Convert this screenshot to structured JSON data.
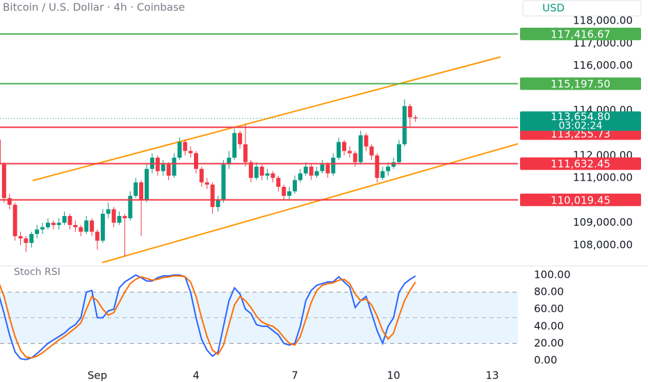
{
  "header": {
    "title": "Bitcoin / U.S. Dollar · 4h · Coinbase",
    "currency": "USD"
  },
  "chart_data": [
    {
      "type": "candlestick",
      "x": [
        0,
        1,
        2,
        3,
        4,
        5,
        6,
        7,
        8,
        9,
        10,
        11,
        12,
        13,
        14,
        15,
        16,
        17,
        18,
        19,
        20,
        21,
        22,
        23,
        24,
        25,
        26,
        27,
        28,
        29,
        30,
        31,
        32,
        33,
        34,
        35,
        36,
        37,
        38,
        39,
        40,
        41,
        42,
        43,
        44,
        45,
        46,
        47,
        48,
        49,
        50,
        51,
        52,
        53,
        54,
        55,
        56,
        57,
        58,
        59,
        60,
        61,
        62,
        63,
        64,
        65,
        66,
        67,
        68,
        69,
        70,
        71,
        72,
        73,
        74,
        75,
        76
      ],
      "open": [
        112700,
        111600,
        110100,
        109800,
        108400,
        108300,
        108100,
        108500,
        108700,
        108800,
        109000,
        108900,
        109000,
        109300,
        108900,
        108800,
        108600,
        109100,
        108600,
        108200,
        109400,
        109600,
        109000,
        109300,
        109200,
        110200,
        110800,
        110000,
        111400,
        111900,
        111300,
        111600,
        111100,
        111900,
        112600,
        112200,
        112100,
        111400,
        110800,
        110700,
        109700,
        110000,
        111600,
        111900,
        113000,
        112500,
        111700,
        111000,
        111500,
        111100,
        111200,
        111000,
        110600,
        110200,
        110400,
        110900,
        111200,
        111500,
        111100,
        111300,
        111600,
        111200,
        111900,
        112600,
        112200,
        112100,
        111700,
        112900,
        112400,
        112000,
        111000,
        111300,
        111500,
        111700,
        112500,
        114200,
        113700
      ],
      "high": [
        112900,
        111700,
        110300,
        109900,
        108600,
        108400,
        108600,
        108900,
        109000,
        109200,
        109100,
        109200,
        109500,
        109400,
        109100,
        108900,
        109300,
        109200,
        108700,
        109600,
        109900,
        109700,
        109500,
        109400,
        110400,
        111000,
        110900,
        111600,
        112100,
        112000,
        111800,
        111700,
        112100,
        112800,
        112700,
        112400,
        112200,
        111500,
        111000,
        110800,
        110200,
        111800,
        112200,
        113200,
        113100,
        113400,
        111800,
        111700,
        111600,
        111400,
        111300,
        111100,
        110700,
        110600,
        111100,
        111400,
        111700,
        111600,
        111500,
        111800,
        111700,
        112100,
        112800,
        112700,
        112400,
        112200,
        113100,
        113000,
        112500,
        112100,
        111500,
        111700,
        111900,
        112700,
        114500,
        114300,
        113800
      ],
      "low": [
        111400,
        109900,
        109600,
        108200,
        108000,
        107700,
        107900,
        108300,
        108500,
        108700,
        108700,
        108700,
        108900,
        108700,
        108600,
        108400,
        108500,
        108400,
        107800,
        108100,
        109200,
        108800,
        108900,
        107500,
        109100,
        110100,
        108400,
        109900,
        111200,
        111100,
        111100,
        110900,
        111000,
        111800,
        112000,
        111900,
        111200,
        110600,
        110500,
        109400,
        109500,
        109900,
        111400,
        111800,
        112300,
        111500,
        110800,
        110900,
        110900,
        110900,
        110800,
        110400,
        110000,
        110000,
        110300,
        110800,
        111100,
        110900,
        111000,
        111200,
        111000,
        111100,
        111800,
        112000,
        111900,
        111500,
        111600,
        112200,
        111800,
        110800,
        110900,
        111100,
        111400,
        111600,
        112400,
        113300,
        113500
      ],
      "close": [
        111600,
        110100,
        109800,
        108400,
        108300,
        108100,
        108500,
        108700,
        108800,
        109000,
        108900,
        109000,
        109300,
        108900,
        108800,
        108600,
        109100,
        108600,
        108200,
        109400,
        109600,
        109000,
        109300,
        109200,
        110200,
        110800,
        110000,
        111400,
        111900,
        111300,
        111600,
        111100,
        111900,
        112600,
        112200,
        112100,
        111400,
        110800,
        110700,
        109700,
        110000,
        111600,
        111900,
        113000,
        112500,
        111700,
        111000,
        111500,
        111100,
        111200,
        111000,
        110600,
        110200,
        110400,
        110900,
        111200,
        111500,
        111100,
        111300,
        111600,
        111200,
        111900,
        112600,
        112200,
        112100,
        111700,
        112900,
        112400,
        112000,
        111000,
        111300,
        111500,
        111700,
        112500,
        114200,
        113700,
        113654.8
      ],
      "up_color": "#089981",
      "down_color": "#f23645",
      "xlim": [
        0.26,
        94.68
      ],
      "xticks": [
        {
          "value": 18,
          "label": "Sep"
        },
        {
          "value": 36,
          "label": "4"
        },
        {
          "value": 54,
          "label": "7"
        },
        {
          "value": 72,
          "label": "10"
        },
        {
          "value": 90,
          "label": "13"
        }
      ],
      "ylim": [
        107164,
        118929
      ],
      "yticks": [
        {
          "value": 118000,
          "label": "118,000.00"
        },
        {
          "value": 117000,
          "label": "117,000.00"
        },
        {
          "value": 116000,
          "label": "116,000.00"
        },
        {
          "value": 114000,
          "label": "114,000.00"
        },
        {
          "value": 112000,
          "label": "112,000.00"
        },
        {
          "value": 111000,
          "label": "111,000.00"
        },
        {
          "value": 109000,
          "label": "109,000.00"
        },
        {
          "value": 108000,
          "label": "108,000.00"
        }
      ],
      "levels": [
        {
          "value": 117416.67,
          "label": "117,416.67",
          "color": "#4caf50"
        },
        {
          "value": 115197.5,
          "label": "115,197.50",
          "color": "#4caf50"
        },
        {
          "value": 113255.73,
          "label": "113,255.73",
          "color": "#f23645"
        },
        {
          "value": 111632.45,
          "label": "111,632.45",
          "color": "#f23645"
        },
        {
          "value": 110019.45,
          "label": "110,019.45",
          "color": "#f23645"
        }
      ],
      "last_price": {
        "value": 113654.8,
        "label": "113,654.80",
        "countdown": "03:02:24",
        "color": "#089981"
      },
      "trendline_color": "#ff9800",
      "trendlines": [
        {
          "x": [
            6.2,
            91.5
          ],
          "y": [
            110880,
            116390
          ]
        },
        {
          "x": [
            18.9,
            94.7
          ],
          "y": [
            107226,
            112520
          ]
        }
      ]
    },
    {
      "type": "line",
      "title": "Stoch RSI",
      "series": [
        {
          "color": "#2962ff",
          "values": [
            78,
            55,
            30,
            10,
            2,
            1,
            3,
            8,
            14,
            20,
            24,
            28,
            32,
            38,
            42,
            50,
            80,
            82,
            50,
            50,
            58,
            60,
            85,
            92,
            96,
            100,
            97,
            93,
            93,
            97,
            99,
            99,
            100,
            100,
            98,
            80,
            50,
            25,
            12,
            5,
            10,
            40,
            70,
            85,
            78,
            60,
            55,
            42,
            40,
            40,
            35,
            30,
            20,
            18,
            20,
            40,
            70,
            82,
            88,
            90,
            92,
            92,
            98,
            92,
            86,
            62,
            70,
            75,
            55,
            35,
            20,
            40,
            50,
            80,
            90,
            95,
            99
          ]
        },
        {
          "color": "#ff6d00",
          "values": [
            92,
            75,
            50,
            28,
            12,
            4,
            3,
            5,
            9,
            14,
            19,
            24,
            28,
            33,
            38,
            44,
            60,
            75,
            70,
            60,
            53,
            56,
            68,
            80,
            90,
            95,
            98,
            96,
            94,
            95,
            97,
            98,
            99,
            99,
            98,
            92,
            75,
            50,
            28,
            12,
            7,
            18,
            42,
            65,
            75,
            70,
            62,
            52,
            45,
            42,
            40,
            35,
            27,
            20,
            18,
            28,
            48,
            68,
            82,
            88,
            90,
            91,
            94,
            95,
            90,
            78,
            70,
            72,
            65,
            52,
            35,
            25,
            32,
            52,
            70,
            82,
            92
          ]
        }
      ],
      "ylim": [
        -9,
        109
      ],
      "yticks": [
        {
          "value": 100,
          "label": "100.00"
        },
        {
          "value": 80,
          "label": "80.00"
        },
        {
          "value": 60,
          "label": "60.00"
        },
        {
          "value": 40,
          "label": "40.00"
        },
        {
          "value": 20,
          "label": "20.00"
        },
        {
          "value": 0,
          "label": "0.00"
        }
      ],
      "band": [
        20,
        80
      ],
      "midline": 50
    }
  ]
}
